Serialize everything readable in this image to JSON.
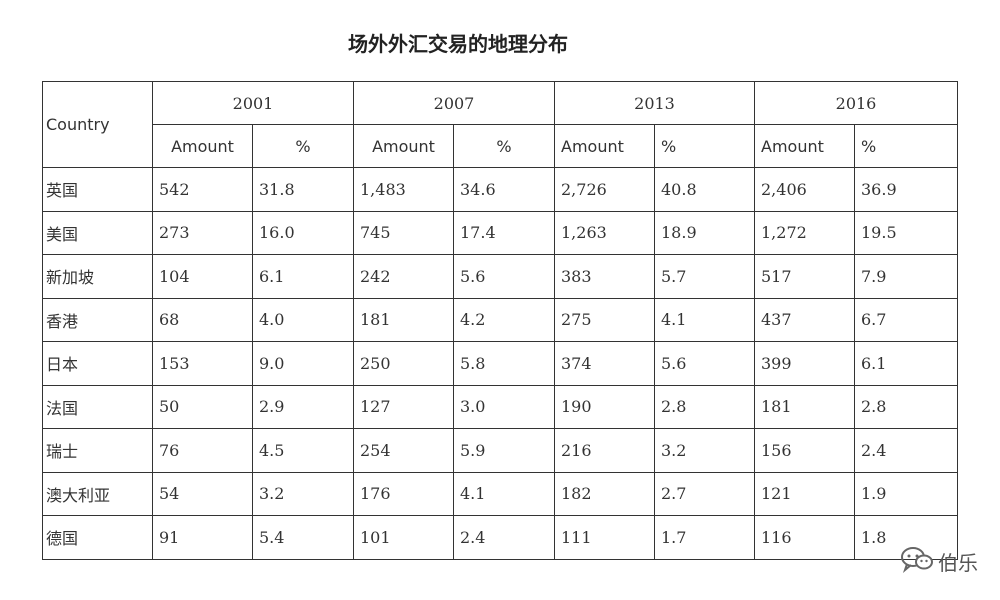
{
  "title": "场外外汇交易的地理分布",
  "table": {
    "country_header": "Country",
    "years": [
      "2001",
      "2007",
      "2013",
      "2016"
    ],
    "amount_label": "Amount",
    "pct_label": "%",
    "rows": [
      {
        "country": "英国",
        "values": [
          "542",
          "31.8",
          "1,483",
          "34.6",
          "2,726",
          "40.8",
          "2,406",
          "36.9"
        ]
      },
      {
        "country": "美国",
        "values": [
          "273",
          "16.0",
          "745",
          "17.4",
          "1,263",
          "18.9",
          "1,272",
          "19.5"
        ]
      },
      {
        "country": "新加坡",
        "values": [
          "104",
          "6.1",
          "242",
          "5.6",
          "383",
          "5.7",
          "517",
          "7.9"
        ]
      },
      {
        "country": "香港",
        "values": [
          "68",
          "4.0",
          "181",
          "4.2",
          "275",
          "4.1",
          "437",
          "6.7"
        ]
      },
      {
        "country": "日本",
        "values": [
          "153",
          "9.0",
          "250",
          "5.8",
          "374",
          "5.6",
          "399",
          "6.1"
        ]
      },
      {
        "country": "法国",
        "values": [
          "50",
          "2.9",
          "127",
          "3.0",
          "190",
          "2.8",
          "181",
          "2.8"
        ]
      },
      {
        "country": "瑞士",
        "values": [
          "76",
          "4.5",
          "254",
          "5.9",
          "216",
          "3.2",
          "156",
          "2.4"
        ]
      },
      {
        "country": "澳大利亚",
        "values": [
          "54",
          "3.2",
          "176",
          "4.1",
          "182",
          "2.7",
          "121",
          "1.9"
        ]
      },
      {
        "country": "德国",
        "values": [
          "91",
          "5.4",
          "101",
          "2.4",
          "111",
          "1.7",
          "116",
          "1.8"
        ]
      }
    ]
  },
  "watermark": {
    "text": "伯乐",
    "icon": "wechat-icon"
  }
}
